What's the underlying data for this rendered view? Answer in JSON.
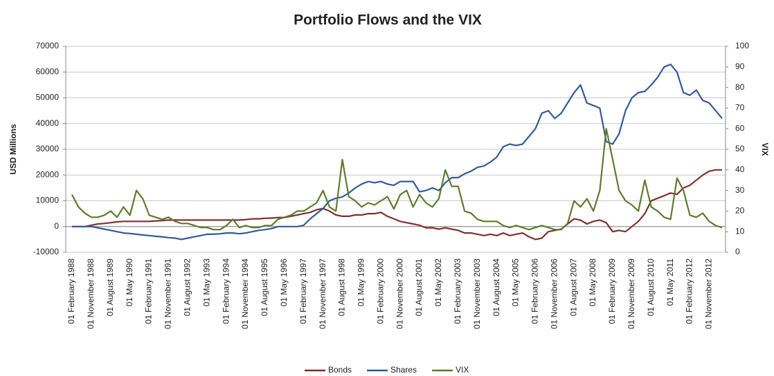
{
  "chart_data": {
    "type": "line",
    "title": "Portfolio Flows and the VIX",
    "y_label": "USD Millions",
    "y2_label": "VIX",
    "categories": [
      "01 February 1988",
      null,
      null,
      "01 November 1988",
      null,
      null,
      "01 August 1989",
      null,
      null,
      "01 May 1990",
      null,
      null,
      "01 February 1991",
      null,
      null,
      "01 November 1991",
      null,
      null,
      "01 August 1992",
      null,
      null,
      "01 May 1993",
      null,
      null,
      "01 February 1994",
      null,
      null,
      "01 November 1994",
      null,
      null,
      "01 August 1995",
      null,
      null,
      "01 May 1996",
      null,
      null,
      "01 February 1997",
      null,
      null,
      "01 November 1997",
      null,
      null,
      "01 August 1998",
      null,
      null,
      "01 May 1999",
      null,
      null,
      "01 February 2000",
      null,
      null,
      "01 November 2000",
      null,
      null,
      "01 August 2001",
      null,
      null,
      "01 May 2002",
      null,
      null,
      "01 February 2003",
      null,
      null,
      "01 November 2003",
      null,
      null,
      "01 August 2004",
      null,
      null,
      "01 May 2005",
      null,
      null,
      "01 February 2006",
      null,
      null,
      "01 November 2006",
      null,
      null,
      "01 August 2007",
      null,
      null,
      "01 May 2008",
      null,
      null,
      "01 February 2009",
      null,
      null,
      "01 November 2009",
      null,
      null,
      "01 August 2010",
      null,
      null,
      "01 May 2011",
      null,
      null,
      "01 February 2012",
      null,
      null,
      "01 November 2012",
      null,
      null
    ],
    "series": [
      {
        "name": "Bonds",
        "color": "#7f2f2f",
        "values": [
          0,
          0,
          0,
          500,
          1000,
          1200,
          1500,
          1800,
          2000,
          2000,
          2000,
          2000,
          2000,
          2200,
          2300,
          2500,
          2500,
          2500,
          2500,
          2500,
          2500,
          2500,
          2500,
          2500,
          2500,
          2500,
          2500,
          2700,
          3000,
          3000,
          3200,
          3300,
          3500,
          3500,
          4000,
          4500,
          5000,
          5500,
          6500,
          7000,
          6000,
          4500,
          4000,
          4000,
          4500,
          4500,
          5000,
          5000,
          5500,
          4000,
          3000,
          2000,
          1500,
          1000,
          500,
          -500,
          -500,
          -1000,
          -500,
          -1000,
          -1500,
          -2500,
          -2500,
          -3000,
          -3500,
          -3000,
          -3500,
          -2500,
          -3500,
          -3000,
          -2500,
          -4000,
          -5000,
          -4500,
          -2000,
          -1500,
          -1000,
          1000,
          3000,
          2500,
          1000,
          2000,
          2500,
          1500,
          -2000,
          -1500,
          -2000,
          0,
          2000,
          5000,
          10000,
          11000,
          12000,
          13000,
          12500,
          15000,
          16000,
          18000,
          20000,
          21500,
          22000,
          22000
        ]
      },
      {
        "name": "Shares",
        "color": "#2f5b98",
        "values": [
          0,
          0,
          0,
          0,
          -500,
          -1000,
          -1500,
          -2000,
          -2500,
          -2700,
          -3000,
          -3300,
          -3500,
          -3800,
          -4000,
          -4300,
          -4500,
          -5000,
          -4500,
          -4000,
          -3500,
          -3000,
          -3000,
          -2800,
          -2500,
          -2500,
          -2800,
          -2500,
          -2000,
          -1500,
          -1200,
          -800,
          0,
          0,
          0,
          0,
          500,
          3000,
          5000,
          7000,
          10000,
          11000,
          11500,
          13000,
          15000,
          16500,
          17500,
          17000,
          17500,
          16500,
          16000,
          17500,
          17500,
          17500,
          13500,
          14000,
          15000,
          14000,
          17000,
          19000,
          19000,
          20500,
          21500,
          23000,
          23500,
          25000,
          27000,
          31000,
          32000,
          31500,
          32000,
          35000,
          38000,
          44000,
          45000,
          42000,
          44000,
          48000,
          52000,
          55000,
          48000,
          47000,
          46000,
          33000,
          32000,
          36000,
          45000,
          50000,
          52000,
          52500,
          55000,
          58000,
          62000,
          63000,
          60000,
          52000,
          51000,
          53000,
          49000,
          48000,
          45000,
          42000
        ]
      },
      {
        "name": "VIX",
        "color": "#5f7a2b",
        "axis": "y2",
        "values": [
          28,
          22,
          19,
          17,
          17,
          18,
          20,
          17,
          22,
          18,
          30,
          26,
          18,
          17,
          16,
          17,
          15,
          14,
          14,
          13,
          12,
          12,
          11,
          11,
          13,
          16,
          12,
          13,
          12,
          12,
          13,
          13,
          16,
          17,
          18,
          20,
          20,
          22,
          24,
          30,
          22,
          20,
          45,
          27,
          25,
          22,
          24,
          23,
          25,
          27,
          21,
          28,
          30,
          22,
          28,
          24,
          22,
          26,
          40,
          32,
          32,
          20,
          19,
          16,
          15,
          15,
          15,
          13,
          12,
          13,
          12,
          11,
          12,
          13,
          12,
          11,
          11,
          14,
          25,
          22,
          26,
          20,
          30,
          60,
          45,
          30,
          25,
          23,
          20,
          35,
          22,
          20,
          17,
          16,
          36,
          30,
          18,
          17,
          19,
          15,
          13,
          12
        ]
      }
    ],
    "ylim": [
      -10000,
      70000
    ],
    "yticks": [
      -10000,
      0,
      10000,
      20000,
      30000,
      40000,
      50000,
      60000,
      70000
    ],
    "y2lim": [
      0,
      100
    ],
    "y2ticks": [
      0,
      10,
      20,
      30,
      40,
      50,
      60,
      70,
      80,
      90,
      100
    ],
    "grid": true,
    "legend": "bottom"
  }
}
